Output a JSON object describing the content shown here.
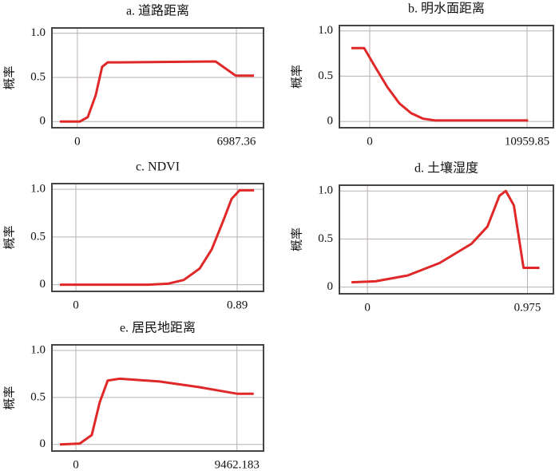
{
  "chart_data": [
    {
      "type": "line",
      "title": "a. 道路距离",
      "y_label": "概率",
      "color": "#e02828",
      "grid": true,
      "x": [
        -772,
        105,
        456,
        808,
        1088,
        1334,
        1861,
        6074,
        6952,
        7760
      ],
      "values": [
        0,
        0,
        0.05,
        0.3,
        0.62,
        0.67,
        0.67,
        0.68,
        0.52,
        0.52
      ],
      "xlim": [
        -1120,
        8180
      ],
      "xticks": [
        0,
        6987.36
      ],
      "ylim": [
        -0.07,
        1.06
      ],
      "yticks": [
        0,
        0.5,
        {
          "value": 1,
          "label": "1.0"
        }
      ]
    },
    {
      "type": "line",
      "title": "b. 明水面距离",
      "y_label": "概率",
      "color": "#e02828",
      "grid": true,
      "x": [
        -1280,
        -389,
        389,
        1224,
        2058,
        2893,
        3727,
        4562,
        11030
      ],
      "values": [
        0.81,
        0.81,
        0.6,
        0.38,
        0.2,
        0.09,
        0.03,
        0.01,
        0.01
      ],
      "xlim": [
        -2114,
        12795
      ],
      "xticks": [
        0,
        10959.85
      ],
      "ylim": [
        -0.07,
        1.06
      ],
      "yticks": [
        0,
        0.5,
        {
          "value": 1,
          "label": "1.0"
        }
      ]
    },
    {
      "type": "line",
      "title": "c. NDVI",
      "y_label": "概率",
      "color": "#e02828",
      "grid": true,
      "x": [
        -0.088,
        0.397,
        0.507,
        0.595,
        0.683,
        0.749,
        0.815,
        0.859,
        0.903,
        0.983
      ],
      "values": [
        0,
        0,
        0.01,
        0.05,
        0.17,
        0.37,
        0.68,
        0.9,
        0.99,
        0.99
      ],
      "xlim": [
        -0.132,
        1.035
      ],
      "xticks": [
        0,
        0.89
      ],
      "ylim": [
        -0.07,
        1.06
      ],
      "yticks": [
        0,
        0.5,
        {
          "value": 1,
          "label": "1.0"
        }
      ]
    },
    {
      "type": "line",
      "title": "d. 土壤湿度",
      "y_label": "概率",
      "color": "#e02828",
      "grid": true,
      "x": [
        -0.0975,
        0.049,
        0.244,
        0.439,
        0.634,
        0.731,
        0.804,
        0.843,
        0.892,
        0.951,
        1.048
      ],
      "values": [
        0.05,
        0.06,
        0.12,
        0.25,
        0.45,
        0.63,
        0.95,
        1.0,
        0.85,
        0.2,
        0.2
      ],
      "xlim": [
        -0.171,
        1.133
      ],
      "xticks": [
        0,
        0.975
      ],
      "ylim": [
        -0.07,
        1.06
      ],
      "yticks": [
        0,
        0.5,
        {
          "value": 1,
          "label": "1.0"
        }
      ]
    },
    {
      "type": "line",
      "title": "e. 居民地距离",
      "y_label": "概率",
      "color": "#e02828",
      "grid": true,
      "x": [
        -937,
        234,
        937,
        1405,
        1874,
        2576,
        4918,
        7260,
        9462,
        10446
      ],
      "values": [
        0,
        0.01,
        0.1,
        0.45,
        0.68,
        0.7,
        0.67,
        0.61,
        0.54,
        0.54
      ],
      "xlim": [
        -1405,
        11024
      ],
      "xticks": [
        0,
        9462.183
      ],
      "ylim": [
        -0.07,
        1.06
      ],
      "yticks": [
        0,
        0.5,
        {
          "value": 1,
          "label": "1.0"
        }
      ]
    }
  ]
}
